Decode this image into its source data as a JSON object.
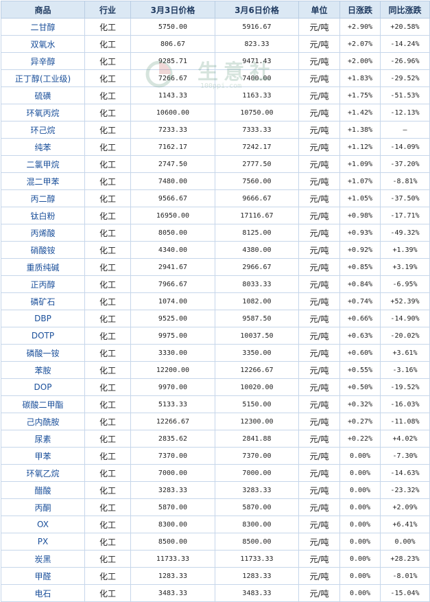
{
  "headers": [
    "商品",
    "行业",
    "3月3日价格",
    "3月6日价格",
    "单位",
    "日涨跌",
    "同比涨跌"
  ],
  "watermark": {
    "text": "生意社",
    "url": "100ppi.com"
  },
  "colors": {
    "up": "#e00000",
    "down": "#008a00",
    "header_bg": "#dbe8f4",
    "border": "#c6d6ea",
    "name": "#1a4f9a"
  },
  "rows": [
    {
      "name": "二甘醇",
      "industry": "化工",
      "p1": "5750.00",
      "p2": "5916.67",
      "unit": "元/吨",
      "day": "+2.90%",
      "yoy": "+20.58%"
    },
    {
      "name": "双氧水",
      "industry": "化工",
      "p1": "806.67",
      "p2": "823.33",
      "unit": "元/吨",
      "day": "+2.07%",
      "yoy": "-14.24%"
    },
    {
      "name": "异辛醇",
      "industry": "化工",
      "p1": "9285.71",
      "p2": "9471.43",
      "unit": "元/吨",
      "day": "+2.00%",
      "yoy": "-26.96%"
    },
    {
      "name": "正丁醇(工业级)",
      "industry": "化工",
      "p1": "7266.67",
      "p2": "7400.00",
      "unit": "元/吨",
      "day": "+1.83%",
      "yoy": "-29.52%"
    },
    {
      "name": "硫磺",
      "industry": "化工",
      "p1": "1143.33",
      "p2": "1163.33",
      "unit": "元/吨",
      "day": "+1.75%",
      "yoy": "-51.53%"
    },
    {
      "name": "环氧丙烷",
      "industry": "化工",
      "p1": "10600.00",
      "p2": "10750.00",
      "unit": "元/吨",
      "day": "+1.42%",
      "yoy": "-12.13%"
    },
    {
      "name": "环己烷",
      "industry": "化工",
      "p1": "7233.33",
      "p2": "7333.33",
      "unit": "元/吨",
      "day": "+1.38%",
      "yoy": "—"
    },
    {
      "name": "纯苯",
      "industry": "化工",
      "p1": "7162.17",
      "p2": "7242.17",
      "unit": "元/吨",
      "day": "+1.12%",
      "yoy": "-14.09%"
    },
    {
      "name": "二氯甲烷",
      "industry": "化工",
      "p1": "2747.50",
      "p2": "2777.50",
      "unit": "元/吨",
      "day": "+1.09%",
      "yoy": "-37.20%"
    },
    {
      "name": "混二甲苯",
      "industry": "化工",
      "p1": "7480.00",
      "p2": "7560.00",
      "unit": "元/吨",
      "day": "+1.07%",
      "yoy": "-8.81%"
    },
    {
      "name": "丙二醇",
      "industry": "化工",
      "p1": "9566.67",
      "p2": "9666.67",
      "unit": "元/吨",
      "day": "+1.05%",
      "yoy": "-37.50%"
    },
    {
      "name": "钛白粉",
      "industry": "化工",
      "p1": "16950.00",
      "p2": "17116.67",
      "unit": "元/吨",
      "day": "+0.98%",
      "yoy": "-17.71%"
    },
    {
      "name": "丙烯酸",
      "industry": "化工",
      "p1": "8050.00",
      "p2": "8125.00",
      "unit": "元/吨",
      "day": "+0.93%",
      "yoy": "-49.32%"
    },
    {
      "name": "硝酸铵",
      "industry": "化工",
      "p1": "4340.00",
      "p2": "4380.00",
      "unit": "元/吨",
      "day": "+0.92%",
      "yoy": "+1.39%"
    },
    {
      "name": "重质纯碱",
      "industry": "化工",
      "p1": "2941.67",
      "p2": "2966.67",
      "unit": "元/吨",
      "day": "+0.85%",
      "yoy": "+3.19%"
    },
    {
      "name": "正丙醇",
      "industry": "化工",
      "p1": "7966.67",
      "p2": "8033.33",
      "unit": "元/吨",
      "day": "+0.84%",
      "yoy": "-6.95%"
    },
    {
      "name": "磷矿石",
      "industry": "化工",
      "p1": "1074.00",
      "p2": "1082.00",
      "unit": "元/吨",
      "day": "+0.74%",
      "yoy": "+52.39%"
    },
    {
      "name": "DBP",
      "industry": "化工",
      "p1": "9525.00",
      "p2": "9587.50",
      "unit": "元/吨",
      "day": "+0.66%",
      "yoy": "-14.90%"
    },
    {
      "name": "DOTP",
      "industry": "化工",
      "p1": "9975.00",
      "p2": "10037.50",
      "unit": "元/吨",
      "day": "+0.63%",
      "yoy": "-20.02%"
    },
    {
      "name": "磷酸一铵",
      "industry": "化工",
      "p1": "3330.00",
      "p2": "3350.00",
      "unit": "元/吨",
      "day": "+0.60%",
      "yoy": "+3.61%"
    },
    {
      "name": "苯胺",
      "industry": "化工",
      "p1": "12200.00",
      "p2": "12266.67",
      "unit": "元/吨",
      "day": "+0.55%",
      "yoy": "-3.16%"
    },
    {
      "name": "DOP",
      "industry": "化工",
      "p1": "9970.00",
      "p2": "10020.00",
      "unit": "元/吨",
      "day": "+0.50%",
      "yoy": "-19.52%"
    },
    {
      "name": "碳酸二甲酯",
      "industry": "化工",
      "p1": "5133.33",
      "p2": "5150.00",
      "unit": "元/吨",
      "day": "+0.32%",
      "yoy": "-16.03%"
    },
    {
      "name": "己内酰胺",
      "industry": "化工",
      "p1": "12266.67",
      "p2": "12300.00",
      "unit": "元/吨",
      "day": "+0.27%",
      "yoy": "-11.08%"
    },
    {
      "name": "尿素",
      "industry": "化工",
      "p1": "2835.62",
      "p2": "2841.88",
      "unit": "元/吨",
      "day": "+0.22%",
      "yoy": "+4.02%"
    },
    {
      "name": "甲苯",
      "industry": "化工",
      "p1": "7370.00",
      "p2": "7370.00",
      "unit": "元/吨",
      "day": "0.00%",
      "yoy": "-7.30%"
    },
    {
      "name": "环氧乙烷",
      "industry": "化工",
      "p1": "7000.00",
      "p2": "7000.00",
      "unit": "元/吨",
      "day": "0.00%",
      "yoy": "-14.63%"
    },
    {
      "name": "醋酸",
      "industry": "化工",
      "p1": "3283.33",
      "p2": "3283.33",
      "unit": "元/吨",
      "day": "0.00%",
      "yoy": "-23.32%"
    },
    {
      "name": "丙酮",
      "industry": "化工",
      "p1": "5870.00",
      "p2": "5870.00",
      "unit": "元/吨",
      "day": "0.00%",
      "yoy": "+2.09%"
    },
    {
      "name": "OX",
      "industry": "化工",
      "p1": "8300.00",
      "p2": "8300.00",
      "unit": "元/吨",
      "day": "0.00%",
      "yoy": "+6.41%"
    },
    {
      "name": "PX",
      "industry": "化工",
      "p1": "8500.00",
      "p2": "8500.00",
      "unit": "元/吨",
      "day": "0.00%",
      "yoy": "0.00%"
    },
    {
      "name": "炭黑",
      "industry": "化工",
      "p1": "11733.33",
      "p2": "11733.33",
      "unit": "元/吨",
      "day": "0.00%",
      "yoy": "+28.23%"
    },
    {
      "name": "甲醛",
      "industry": "化工",
      "p1": "1283.33",
      "p2": "1283.33",
      "unit": "元/吨",
      "day": "0.00%",
      "yoy": "-8.01%"
    },
    {
      "name": "电石",
      "industry": "化工",
      "p1": "3483.33",
      "p2": "3483.33",
      "unit": "元/吨",
      "day": "0.00%",
      "yoy": "-15.04%"
    }
  ]
}
